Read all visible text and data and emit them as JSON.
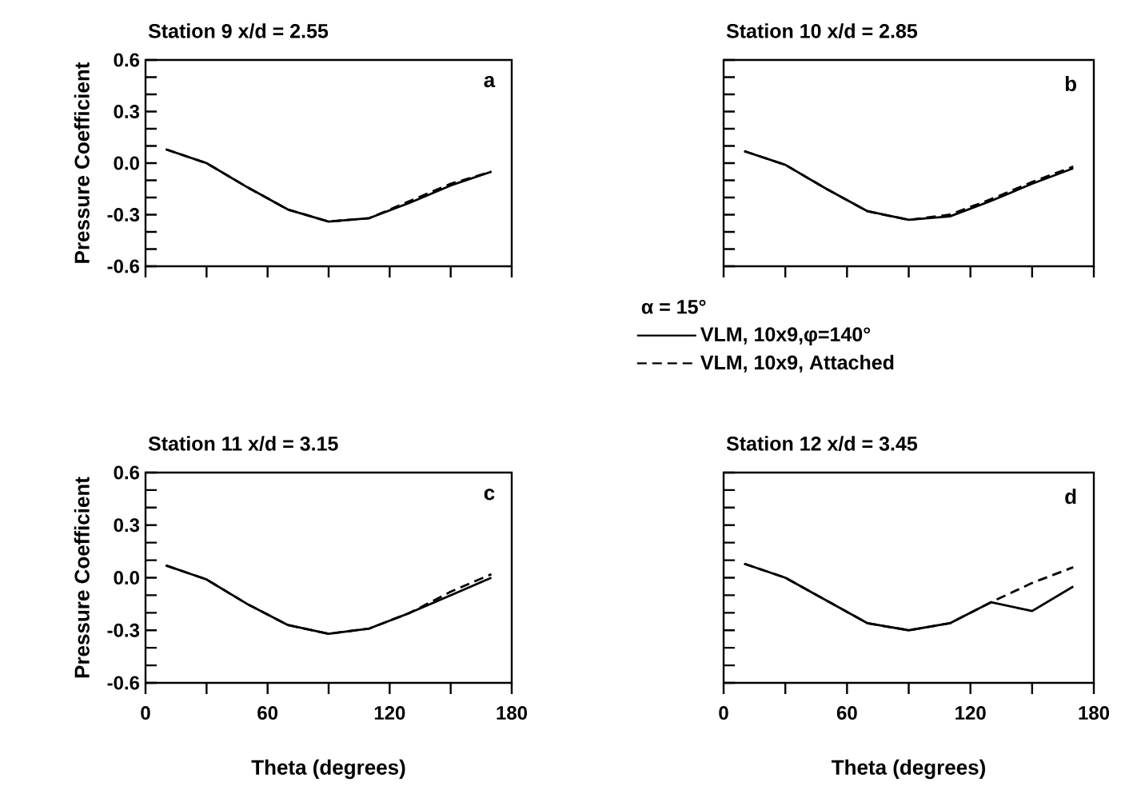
{
  "chart_data": [
    {
      "type": "line",
      "title": "Station 9  x/d = 2.55",
      "ylabel": "Pressure Coefficient",
      "annotations": [
        "a"
      ],
      "x": [
        10,
        30,
        50,
        70,
        90,
        110,
        130,
        150,
        170
      ],
      "series": [
        {
          "color": "#000000",
          "line_style": "solid",
          "values": [
            0.08,
            0.0,
            -0.14,
            -0.27,
            -0.34,
            -0.32,
            -0.23,
            -0.13,
            -0.05
          ]
        },
        {
          "color": "#000000",
          "line_style": "dashed",
          "values": [
            0.08,
            0.0,
            -0.14,
            -0.27,
            -0.34,
            -0.32,
            -0.22,
            -0.12,
            -0.05
          ]
        }
      ],
      "xlim": [
        0,
        180
      ],
      "ylim": [
        -0.6,
        0.6
      ],
      "xticks": [
        0,
        {
          "value": 30,
          "label": null
        },
        60,
        {
          "value": 90,
          "label": null
        },
        120,
        {
          "value": 150,
          "label": null
        },
        180
      ],
      "yticks": [
        {
          "value": -0.6,
          "label": "-0.6"
        },
        {
          "value": -0.5,
          "label": null
        },
        {
          "value": -0.4,
          "label": null
        },
        {
          "value": -0.3,
          "label": "-0.3"
        },
        {
          "value": -0.2,
          "label": null
        },
        {
          "value": -0.1,
          "label": null
        },
        {
          "value": 0,
          "label": "0.0"
        },
        {
          "value": 0.1,
          "label": null
        },
        {
          "value": 0.2,
          "label": null
        },
        {
          "value": 0.3,
          "label": "0.3"
        },
        {
          "value": 0.4,
          "label": null
        },
        {
          "value": 0.5,
          "label": null
        },
        {
          "value": 0.6,
          "label": "0.6"
        }
      ],
      "tick_labels": "y"
    },
    {
      "type": "line",
      "title": "Station 10  x/d = 2.85",
      "annotations": [
        "b"
      ],
      "legend_title": "α = 15°",
      "legend": "bottom",
      "x": [
        10,
        30,
        50,
        70,
        90,
        110,
        130,
        150,
        170
      ],
      "series": [
        {
          "name": "VLM, 10x9,φ=140°",
          "color": "#000000",
          "line_style": "solid",
          "values": [
            0.07,
            -0.01,
            -0.15,
            -0.28,
            -0.33,
            -0.31,
            -0.22,
            -0.12,
            -0.03
          ]
        },
        {
          "name": "VLM, 10x9, Attached",
          "color": "#000000",
          "line_style": "dashed",
          "values": [
            0.07,
            -0.01,
            -0.15,
            -0.28,
            -0.33,
            -0.3,
            -0.21,
            -0.11,
            -0.02
          ]
        }
      ],
      "xlim": [
        0,
        180
      ],
      "ylim": [
        -0.6,
        0.6
      ],
      "xticks": [
        0,
        {
          "value": 30,
          "label": null
        },
        60,
        {
          "value": 90,
          "label": null
        },
        120,
        {
          "value": 150,
          "label": null
        },
        180
      ],
      "yticks": [
        {
          "value": -0.6,
          "label": null
        },
        {
          "value": -0.5,
          "label": null
        },
        {
          "value": -0.4,
          "label": null
        },
        {
          "value": -0.3,
          "label": null
        },
        {
          "value": -0.2,
          "label": null
        },
        {
          "value": -0.1,
          "label": null
        },
        {
          "value": 0,
          "label": null
        },
        {
          "value": 0.1,
          "label": null
        },
        {
          "value": 0.2,
          "label": null
        },
        {
          "value": 0.3,
          "label": null
        },
        {
          "value": 0.4,
          "label": null
        },
        {
          "value": 0.5,
          "label": null
        },
        {
          "value": 0.6,
          "label": null
        }
      ],
      "tick_labels": false
    },
    {
      "type": "line",
      "title": "Station 11  x/d = 3.15",
      "ylabel": "Pressure Coefficient",
      "xlabel": "Theta (degrees)",
      "annotations": [
        "c"
      ],
      "x": [
        10,
        30,
        50,
        70,
        90,
        110,
        130,
        150,
        170
      ],
      "series": [
        {
          "color": "#000000",
          "line_style": "solid",
          "values": [
            0.07,
            -0.01,
            -0.15,
            -0.27,
            -0.32,
            -0.29,
            -0.2,
            -0.1,
            0.0
          ]
        },
        {
          "color": "#000000",
          "line_style": "dashed",
          "values": [
            0.07,
            -0.01,
            -0.15,
            -0.27,
            -0.32,
            -0.29,
            -0.2,
            -0.08,
            0.02
          ]
        }
      ],
      "xlim": [
        0,
        180
      ],
      "ylim": [
        -0.6,
        0.6
      ],
      "xticks": [
        0,
        {
          "value": 30,
          "label": null
        },
        60,
        {
          "value": 90,
          "label": null
        },
        120,
        {
          "value": 150,
          "label": null
        },
        180
      ],
      "yticks": [
        {
          "value": -0.6,
          "label": "-0.6"
        },
        {
          "value": -0.5,
          "label": null
        },
        {
          "value": -0.4,
          "label": null
        },
        {
          "value": -0.3,
          "label": "-0.3"
        },
        {
          "value": -0.2,
          "label": null
        },
        {
          "value": -0.1,
          "label": null
        },
        {
          "value": 0,
          "label": "0.0"
        },
        {
          "value": 0.1,
          "label": null
        },
        {
          "value": 0.2,
          "label": null
        },
        {
          "value": 0.3,
          "label": "0.3"
        },
        {
          "value": 0.4,
          "label": null
        },
        {
          "value": 0.5,
          "label": null
        },
        {
          "value": 0.6,
          "label": "0.6"
        }
      ]
    },
    {
      "type": "line",
      "title": "Station 12  x/d = 3.45",
      "xlabel": "Theta (degrees)",
      "annotations": [
        "d"
      ],
      "x": [
        10,
        30,
        50,
        70,
        90,
        110,
        130,
        150,
        170
      ],
      "series": [
        {
          "color": "#000000",
          "line_style": "solid",
          "values": [
            0.08,
            0.0,
            -0.13,
            -0.26,
            -0.3,
            -0.26,
            -0.14,
            -0.19,
            -0.05
          ]
        },
        {
          "color": "#000000",
          "line_style": "dashed",
          "values": [
            0.08,
            0.0,
            -0.13,
            -0.26,
            -0.3,
            -0.26,
            -0.14,
            -0.03,
            0.06
          ]
        }
      ],
      "xlim": [
        0,
        180
      ],
      "ylim": [
        -0.6,
        0.6
      ],
      "xticks": [
        0,
        {
          "value": 30,
          "label": null
        },
        60,
        {
          "value": 90,
          "label": null
        },
        120,
        {
          "value": 150,
          "label": null
        },
        180
      ],
      "yticks": [
        {
          "value": -0.6,
          "label": null
        },
        {
          "value": -0.5,
          "label": null
        },
        {
          "value": -0.4,
          "label": null
        },
        {
          "value": -0.3,
          "label": null
        },
        {
          "value": -0.2,
          "label": null
        },
        {
          "value": -0.1,
          "label": null
        },
        {
          "value": 0,
          "label": null
        },
        {
          "value": 0.1,
          "label": null
        },
        {
          "value": 0.2,
          "label": null
        },
        {
          "value": 0.3,
          "label": null
        },
        {
          "value": 0.4,
          "label": null
        },
        {
          "value": 0.5,
          "label": null
        },
        {
          "value": 0.6,
          "label": null
        }
      ],
      "tick_labels": "x"
    }
  ]
}
